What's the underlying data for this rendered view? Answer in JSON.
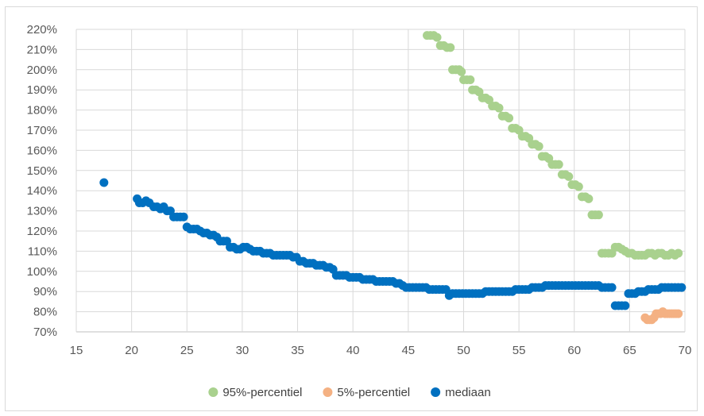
{
  "chart_data": {
    "type": "scatter",
    "title": "",
    "xlabel": "",
    "ylabel": "",
    "xlim": [
      15,
      70
    ],
    "ylim": [
      0.7,
      2.2
    ],
    "x_ticks": [
      "15",
      "20",
      "25",
      "30",
      "35",
      "40",
      "45",
      "50",
      "55",
      "60",
      "65",
      "70"
    ],
    "y_ticks": [
      "70%",
      "80%",
      "90%",
      "100%",
      "110%",
      "120%",
      "130%",
      "140%",
      "150%",
      "160%",
      "170%",
      "180%",
      "190%",
      "200%",
      "210%",
      "220%"
    ],
    "grid": true,
    "legend_position": "bottom",
    "series": [
      {
        "name": "95%-percentiel",
        "color": "#a9d18e",
        "points": [
          [
            46.7,
            2.17
          ],
          [
            47.0,
            2.17
          ],
          [
            47.3,
            2.17
          ],
          [
            47.6,
            2.16
          ],
          [
            47.9,
            2.12
          ],
          [
            48.2,
            2.12
          ],
          [
            48.5,
            2.11
          ],
          [
            48.8,
            2.11
          ],
          [
            49.0,
            2.0
          ],
          [
            49.3,
            2.0
          ],
          [
            49.6,
            2.0
          ],
          [
            49.8,
            1.99
          ],
          [
            50.0,
            1.95
          ],
          [
            50.3,
            1.95
          ],
          [
            50.6,
            1.95
          ],
          [
            50.8,
            1.9
          ],
          [
            51.1,
            1.9
          ],
          [
            51.4,
            1.89
          ],
          [
            51.7,
            1.86
          ],
          [
            52.0,
            1.86
          ],
          [
            52.3,
            1.85
          ],
          [
            52.6,
            1.82
          ],
          [
            52.9,
            1.82
          ],
          [
            53.2,
            1.81
          ],
          [
            53.5,
            1.77
          ],
          [
            53.8,
            1.77
          ],
          [
            54.1,
            1.76
          ],
          [
            54.4,
            1.71
          ],
          [
            54.7,
            1.71
          ],
          [
            55.0,
            1.7
          ],
          [
            55.3,
            1.67
          ],
          [
            55.6,
            1.67
          ],
          [
            55.9,
            1.66
          ],
          [
            56.2,
            1.63
          ],
          [
            56.5,
            1.63
          ],
          [
            56.8,
            1.62
          ],
          [
            57.1,
            1.57
          ],
          [
            57.4,
            1.57
          ],
          [
            57.7,
            1.56
          ],
          [
            58.0,
            1.53
          ],
          [
            58.3,
            1.53
          ],
          [
            58.6,
            1.53
          ],
          [
            58.9,
            1.48
          ],
          [
            59.2,
            1.48
          ],
          [
            59.5,
            1.47
          ],
          [
            59.8,
            1.43
          ],
          [
            60.1,
            1.43
          ],
          [
            60.4,
            1.42
          ],
          [
            60.7,
            1.37
          ],
          [
            61.0,
            1.37
          ],
          [
            61.3,
            1.36
          ],
          [
            61.6,
            1.28
          ],
          [
            61.9,
            1.28
          ],
          [
            62.2,
            1.28
          ],
          [
            62.5,
            1.09
          ],
          [
            62.8,
            1.09
          ],
          [
            63.1,
            1.09
          ],
          [
            63.4,
            1.09
          ],
          [
            63.7,
            1.12
          ],
          [
            64.0,
            1.12
          ],
          [
            64.3,
            1.11
          ],
          [
            64.6,
            1.1
          ],
          [
            64.9,
            1.09
          ],
          [
            65.2,
            1.09
          ],
          [
            65.5,
            1.08
          ],
          [
            65.8,
            1.08
          ],
          [
            66.1,
            1.08
          ],
          [
            66.4,
            1.08
          ],
          [
            66.7,
            1.09
          ],
          [
            67.0,
            1.09
          ],
          [
            67.3,
            1.08
          ],
          [
            67.6,
            1.09
          ],
          [
            67.9,
            1.09
          ],
          [
            68.2,
            1.08
          ],
          [
            68.5,
            1.08
          ],
          [
            68.8,
            1.09
          ],
          [
            69.1,
            1.08
          ],
          [
            69.4,
            1.09
          ]
        ]
      },
      {
        "name": "5%-percentiel",
        "color": "#f4b183",
        "points": [
          [
            66.4,
            0.77
          ],
          [
            66.6,
            0.76
          ],
          [
            66.8,
            0.76
          ],
          [
            67.0,
            0.76
          ],
          [
            67.2,
            0.77
          ],
          [
            67.4,
            0.79
          ],
          [
            67.6,
            0.79
          ],
          [
            67.8,
            0.79
          ],
          [
            68.0,
            0.8
          ],
          [
            68.2,
            0.79
          ],
          [
            68.4,
            0.79
          ],
          [
            68.6,
            0.79
          ],
          [
            68.8,
            0.79
          ],
          [
            69.0,
            0.79
          ],
          [
            69.2,
            0.79
          ],
          [
            69.4,
            0.79
          ]
        ]
      },
      {
        "name": "mediaan",
        "color": "#0070c0",
        "points": [
          [
            17.5,
            1.44
          ],
          [
            20.5,
            1.36
          ],
          [
            20.7,
            1.34
          ],
          [
            21.0,
            1.34
          ],
          [
            21.3,
            1.35
          ],
          [
            21.6,
            1.34
          ],
          [
            22.0,
            1.32
          ],
          [
            22.3,
            1.32
          ],
          [
            22.6,
            1.31
          ],
          [
            22.9,
            1.32
          ],
          [
            23.2,
            1.3
          ],
          [
            23.5,
            1.3
          ],
          [
            23.8,
            1.27
          ],
          [
            24.1,
            1.27
          ],
          [
            24.4,
            1.27
          ],
          [
            24.7,
            1.27
          ],
          [
            25.0,
            1.22
          ],
          [
            25.3,
            1.21
          ],
          [
            25.6,
            1.21
          ],
          [
            25.9,
            1.21
          ],
          [
            26.2,
            1.2
          ],
          [
            26.5,
            1.19
          ],
          [
            26.8,
            1.19
          ],
          [
            27.1,
            1.18
          ],
          [
            27.4,
            1.18
          ],
          [
            27.7,
            1.17
          ],
          [
            28.0,
            1.15
          ],
          [
            28.3,
            1.15
          ],
          [
            28.6,
            1.15
          ],
          [
            28.9,
            1.12
          ],
          [
            29.2,
            1.12
          ],
          [
            29.5,
            1.11
          ],
          [
            29.8,
            1.11
          ],
          [
            30.1,
            1.12
          ],
          [
            30.4,
            1.12
          ],
          [
            30.7,
            1.11
          ],
          [
            31.0,
            1.1
          ],
          [
            31.3,
            1.1
          ],
          [
            31.6,
            1.1
          ],
          [
            31.9,
            1.09
          ],
          [
            32.2,
            1.09
          ],
          [
            32.5,
            1.09
          ],
          [
            32.8,
            1.08
          ],
          [
            33.1,
            1.08
          ],
          [
            33.4,
            1.08
          ],
          [
            33.7,
            1.08
          ],
          [
            34.0,
            1.08
          ],
          [
            34.3,
            1.08
          ],
          [
            34.6,
            1.07
          ],
          [
            34.9,
            1.07
          ],
          [
            35.2,
            1.05
          ],
          [
            35.5,
            1.05
          ],
          [
            35.8,
            1.04
          ],
          [
            36.1,
            1.04
          ],
          [
            36.4,
            1.04
          ],
          [
            36.7,
            1.03
          ],
          [
            37.0,
            1.03
          ],
          [
            37.3,
            1.03
          ],
          [
            37.6,
            1.02
          ],
          [
            37.9,
            1.02
          ],
          [
            38.2,
            1.01
          ],
          [
            38.5,
            0.98
          ],
          [
            38.8,
            0.98
          ],
          [
            39.1,
            0.98
          ],
          [
            39.4,
            0.98
          ],
          [
            39.7,
            0.97
          ],
          [
            40.0,
            0.97
          ],
          [
            40.3,
            0.97
          ],
          [
            40.6,
            0.97
          ],
          [
            40.9,
            0.96
          ],
          [
            41.2,
            0.96
          ],
          [
            41.5,
            0.96
          ],
          [
            41.8,
            0.96
          ],
          [
            42.1,
            0.95
          ],
          [
            42.4,
            0.95
          ],
          [
            42.7,
            0.95
          ],
          [
            43.0,
            0.95
          ],
          [
            43.3,
            0.95
          ],
          [
            43.6,
            0.95
          ],
          [
            43.9,
            0.94
          ],
          [
            44.2,
            0.94
          ],
          [
            44.5,
            0.93
          ],
          [
            44.8,
            0.92
          ],
          [
            45.1,
            0.92
          ],
          [
            45.4,
            0.92
          ],
          [
            45.7,
            0.92
          ],
          [
            46.0,
            0.92
          ],
          [
            46.3,
            0.92
          ],
          [
            46.6,
            0.92
          ],
          [
            46.9,
            0.91
          ],
          [
            47.2,
            0.91
          ],
          [
            47.5,
            0.91
          ],
          [
            47.8,
            0.91
          ],
          [
            48.1,
            0.91
          ],
          [
            48.4,
            0.91
          ],
          [
            48.7,
            0.88
          ],
          [
            49.0,
            0.89
          ],
          [
            49.3,
            0.89
          ],
          [
            49.6,
            0.89
          ],
          [
            49.9,
            0.89
          ],
          [
            50.2,
            0.89
          ],
          [
            50.5,
            0.89
          ],
          [
            50.8,
            0.89
          ],
          [
            51.1,
            0.89
          ],
          [
            51.4,
            0.89
          ],
          [
            51.7,
            0.89
          ],
          [
            52.0,
            0.9
          ],
          [
            52.3,
            0.9
          ],
          [
            52.6,
            0.9
          ],
          [
            52.9,
            0.9
          ],
          [
            53.2,
            0.9
          ],
          [
            53.5,
            0.9
          ],
          [
            53.8,
            0.9
          ],
          [
            54.1,
            0.9
          ],
          [
            54.4,
            0.9
          ],
          [
            54.7,
            0.91
          ],
          [
            55.0,
            0.91
          ],
          [
            55.3,
            0.91
          ],
          [
            55.6,
            0.91
          ],
          [
            55.9,
            0.91
          ],
          [
            56.2,
            0.92
          ],
          [
            56.5,
            0.92
          ],
          [
            56.8,
            0.92
          ],
          [
            57.1,
            0.92
          ],
          [
            57.4,
            0.93
          ],
          [
            57.7,
            0.93
          ],
          [
            58.0,
            0.93
          ],
          [
            58.3,
            0.93
          ],
          [
            58.6,
            0.93
          ],
          [
            58.9,
            0.93
          ],
          [
            59.2,
            0.93
          ],
          [
            59.5,
            0.93
          ],
          [
            59.8,
            0.93
          ],
          [
            60.1,
            0.93
          ],
          [
            60.4,
            0.93
          ],
          [
            60.7,
            0.93
          ],
          [
            61.0,
            0.93
          ],
          [
            61.3,
            0.93
          ],
          [
            61.6,
            0.93
          ],
          [
            61.9,
            0.93
          ],
          [
            62.2,
            0.93
          ],
          [
            62.5,
            0.92
          ],
          [
            62.8,
            0.92
          ],
          [
            63.1,
            0.92
          ],
          [
            63.4,
            0.92
          ],
          [
            63.7,
            0.83
          ],
          [
            64.0,
            0.83
          ],
          [
            64.3,
            0.83
          ],
          [
            64.6,
            0.83
          ],
          [
            64.9,
            0.89
          ],
          [
            65.2,
            0.89
          ],
          [
            65.5,
            0.89
          ],
          [
            65.8,
            0.9
          ],
          [
            66.1,
            0.9
          ],
          [
            66.4,
            0.9
          ],
          [
            66.7,
            0.91
          ],
          [
            67.0,
            0.91
          ],
          [
            67.3,
            0.91
          ],
          [
            67.6,
            0.91
          ],
          [
            67.9,
            0.92
          ],
          [
            68.2,
            0.92
          ],
          [
            68.5,
            0.92
          ],
          [
            68.8,
            0.92
          ],
          [
            69.1,
            0.92
          ],
          [
            69.4,
            0.92
          ],
          [
            69.7,
            0.92
          ]
        ]
      }
    ]
  }
}
